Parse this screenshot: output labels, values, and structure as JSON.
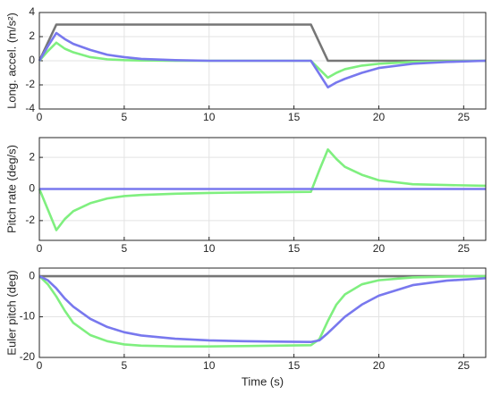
{
  "chart_data": [
    {
      "type": "line",
      "y_label": "Long. accel. (m/s²)",
      "x": [
        0,
        0.5,
        1,
        1.5,
        2,
        3,
        4,
        5,
        6,
        8,
        10,
        12,
        14,
        16,
        16.5,
        17,
        17.5,
        18,
        19,
        20,
        22,
        24,
        26.3
      ],
      "series": [
        {
          "color": "#767676",
          "values": [
            0,
            1.5,
            3,
            3,
            3,
            3,
            3,
            3,
            3,
            3,
            3,
            3,
            3,
            3,
            1.5,
            0,
            0,
            0,
            0,
            0,
            0,
            0,
            0
          ]
        },
        {
          "color": "#7fef7f",
          "values": [
            0,
            0.8,
            1.5,
            1.0,
            0.7,
            0.3,
            0.12,
            0.05,
            0.02,
            0,
            0,
            0,
            0,
            0,
            -0.7,
            -1.4,
            -1.0,
            -0.7,
            -0.4,
            -0.25,
            -0.1,
            -0.05,
            0
          ]
        },
        {
          "color": "#7878ee",
          "values": [
            0,
            1.2,
            2.3,
            1.8,
            1.4,
            0.9,
            0.5,
            0.3,
            0.15,
            0.05,
            0,
            0,
            0,
            0,
            -1.1,
            -2.2,
            -1.8,
            -1.5,
            -1.0,
            -0.6,
            -0.25,
            -0.1,
            0
          ]
        }
      ],
      "xlim": [
        0,
        26.3
      ],
      "xticks": [
        0,
        5,
        10,
        15,
        20,
        25
      ],
      "ylim": [
        -4,
        4
      ],
      "yticks": [
        -4,
        -2,
        0,
        2,
        4
      ],
      "grid": true
    },
    {
      "type": "line",
      "y_label": "Pitch rate (deg/s)",
      "x": [
        0,
        0.5,
        1,
        1.5,
        2,
        3,
        4,
        5,
        6,
        8,
        10,
        12,
        14,
        16,
        16.5,
        17,
        17.5,
        18,
        19,
        20,
        22,
        24,
        26.3
      ],
      "series": [
        {
          "color": "#7fef7f",
          "values": [
            0,
            -1.3,
            -2.6,
            -1.9,
            -1.4,
            -0.9,
            -0.6,
            -0.45,
            -0.38,
            -0.3,
            -0.25,
            -0.22,
            -0.2,
            -0.18,
            1.2,
            2.5,
            1.9,
            1.4,
            0.9,
            0.55,
            0.3,
            0.25,
            0.2
          ]
        },
        {
          "color": "#7878ee",
          "values": [
            0,
            0,
            0,
            0,
            0,
            0,
            0,
            0,
            0,
            0,
            0,
            0,
            0,
            0,
            0,
            0,
            0,
            0,
            0,
            0,
            0,
            0,
            0
          ]
        }
      ],
      "xlim": [
        0,
        26.3
      ],
      "xticks": [
        0,
        5,
        10,
        15,
        20,
        25
      ],
      "ylim": [
        -3.25,
        3.25
      ],
      "yticks": [
        -2,
        0,
        2
      ],
      "grid": true
    },
    {
      "type": "line",
      "y_label": "Euler pitch (deg)",
      "x_label": "Time (s)",
      "x": [
        0,
        0.5,
        1,
        1.5,
        2,
        3,
        4,
        5,
        6,
        8,
        10,
        12,
        14,
        16,
        16.5,
        17,
        17.5,
        18,
        19,
        20,
        22,
        24,
        26.3
      ],
      "series": [
        {
          "color": "#767676",
          "values": [
            0,
            0,
            0,
            0,
            0,
            0,
            0,
            0,
            0,
            0,
            0,
            0,
            0,
            0,
            0,
            0,
            0,
            0,
            0,
            0,
            0,
            0,
            0
          ]
        },
        {
          "color": "#7fef7f",
          "values": [
            0,
            -2,
            -5,
            -8.5,
            -11.5,
            -14.5,
            -16,
            -16.8,
            -17.1,
            -17.3,
            -17.3,
            -17.2,
            -17.1,
            -17,
            -15.5,
            -11,
            -7,
            -4.5,
            -2,
            -1,
            -0.3,
            -0.1,
            0
          ]
        },
        {
          "color": "#7878ee",
          "values": [
            0,
            -1,
            -3,
            -5.5,
            -7.5,
            -10.5,
            -12.5,
            -13.8,
            -14.6,
            -15.4,
            -15.8,
            -16,
            -16.1,
            -16.2,
            -15.8,
            -14,
            -12,
            -10,
            -7,
            -4.8,
            -2.2,
            -1.1,
            -0.5
          ]
        }
      ],
      "xlim": [
        0,
        26.3
      ],
      "xticks": [
        0,
        5,
        10,
        15,
        20,
        25
      ],
      "ylim": [
        -20,
        2
      ],
      "yticks": [
        -20,
        -10,
        0
      ],
      "grid": true
    }
  ]
}
